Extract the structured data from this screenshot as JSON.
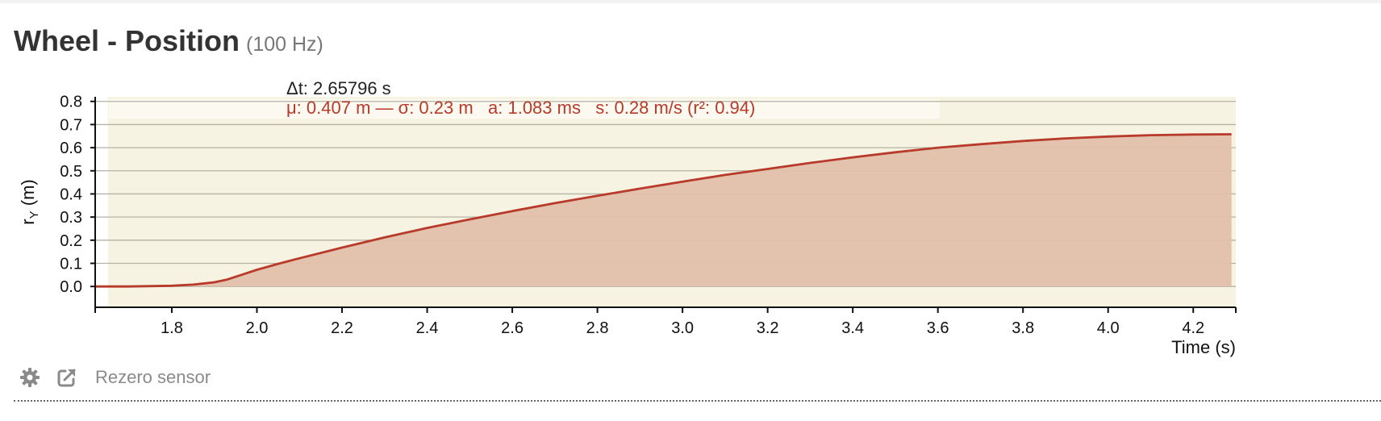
{
  "header": {
    "title": "Wheel - Position",
    "rate": "(100 Hz)"
  },
  "toolbar": {
    "settings_icon": "gear-icon",
    "export_icon": "external-link-icon",
    "rezero_label": "Rezero sensor"
  },
  "colors": {
    "line": "#b83a2a",
    "fill": "#e3c0ab",
    "selection_bg": "#f7f3e3",
    "stats_bg": "#fbf9f0",
    "grid": "#b3b3a5",
    "stats_text": "#b83a2a"
  },
  "chart_data": {
    "type": "area",
    "title": "",
    "xlabel": "Time (s)",
    "ylabel": "r_Y (m)",
    "xlim": [
      1.62,
      4.3
    ],
    "ylim": [
      -0.09,
      0.82
    ],
    "xticks": [
      "1.8",
      "2.0",
      "2.2",
      "2.4",
      "2.6",
      "2.8",
      "3.0",
      "3.2",
      "3.4",
      "3.6",
      "3.8",
      "4.0",
      "4.2"
    ],
    "yticks": [
      "0.0",
      "0.1",
      "0.2",
      "0.3",
      "0.4",
      "0.5",
      "0.6",
      "0.7",
      "0.8"
    ],
    "grid": true,
    "selection": [
      1.65,
      4.3
    ],
    "series": [
      {
        "name": "r_Y",
        "x": [
          1.62,
          1.7,
          1.8,
          1.85,
          1.9,
          1.93,
          1.96,
          2.0,
          2.05,
          2.1,
          2.2,
          2.3,
          2.4,
          2.5,
          2.6,
          2.7,
          2.8,
          2.9,
          3.0,
          3.1,
          3.2,
          3.3,
          3.4,
          3.5,
          3.6,
          3.7,
          3.8,
          3.9,
          4.0,
          4.1,
          4.2,
          4.29
        ],
        "y": [
          0.0,
          0.0,
          0.003,
          0.008,
          0.018,
          0.03,
          0.048,
          0.072,
          0.098,
          0.122,
          0.168,
          0.212,
          0.253,
          0.29,
          0.326,
          0.36,
          0.392,
          0.423,
          0.453,
          0.482,
          0.508,
          0.534,
          0.558,
          0.58,
          0.6,
          0.615,
          0.629,
          0.64,
          0.648,
          0.654,
          0.657,
          0.658
        ]
      }
    ],
    "annotations": {
      "delta_t": "Δt: 2.65796 s",
      "stats": "μ: 0.407 m — σ: 0.23 m   a: 1.083 ms   s: 0.28 m/s (r²: 0.94)"
    }
  }
}
